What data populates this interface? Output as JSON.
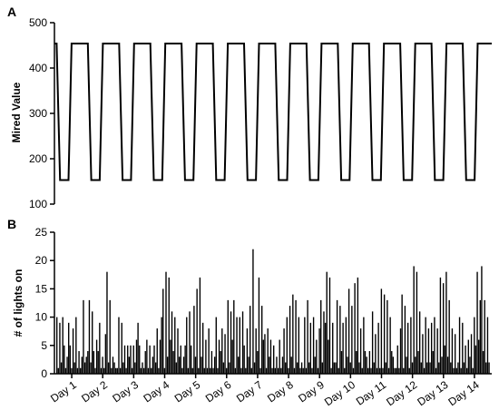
{
  "chart_data": [
    {
      "panel": "A",
      "type": "line",
      "title": "",
      "xlabel": "",
      "ylabel": "Mired Value",
      "ylim": [
        100,
        500
      ],
      "yticks": [
        100,
        200,
        300,
        400,
        500
      ],
      "xlim": [
        0,
        14
      ],
      "grid": false,
      "series": [
        {
          "values_description_free": true,
          "low": 153,
          "high": 454,
          "cycles_per_day": 1,
          "x": [
            0,
            0.07,
            0.18,
            0.45,
            0.55,
            0.81,
            1.0
          ],
          "y": [
            454,
            454,
            153,
            153,
            454,
            454,
            454
          ]
        }
      ]
    },
    {
      "panel": "B",
      "type": "bar",
      "title": "",
      "xlabel": "",
      "ylabel": "# of lights on",
      "ylim": [
        0,
        25
      ],
      "yticks": [
        0,
        5,
        10,
        15,
        20,
        25
      ],
      "grid": false,
      "categories": [
        "Day 1",
        "Day 2",
        "Day 3",
        "Day 4",
        "Day 5",
        "Day 6",
        "Day 7",
        "Day 8",
        "Day 9",
        "Day 10",
        "Day 11",
        "Day 12",
        "Day 13",
        "Day 14"
      ],
      "series": [
        {
          "values": [
            [
              10,
              1,
              9,
              2,
              10,
              5,
              1,
              3,
              9,
              5,
              1,
              8,
              2,
              10,
              1,
              4,
              1,
              3,
              13,
              2,
              3
            ],
            [
              4,
              13,
              2,
              11,
              4,
              1,
              6,
              4,
              9,
              1,
              3,
              1,
              7,
              18,
              2,
              13,
              1,
              3,
              2,
              1,
              1
            ],
            [
              10,
              1,
              9,
              2,
              5,
              1,
              5,
              3,
              5,
              1,
              5,
              2,
              6,
              9,
              5,
              1,
              2,
              1,
              4,
              6,
              1
            ],
            [
              5,
              1,
              3,
              5,
              2,
              8,
              1,
              6,
              10,
              15,
              1,
              18,
              3,
              17,
              6,
              11,
              4,
              10,
              2,
              8,
              3
            ],
            [
              5,
              1,
              3,
              5,
              10,
              1,
              11,
              5,
              1,
              12,
              3,
              15,
              1,
              17,
              3,
              9,
              1,
              6,
              1,
              8,
              1
            ],
            [
              4,
              1,
              3,
              10,
              1,
              6,
              4,
              8,
              2,
              7,
              1,
              13,
              2,
              11,
              6,
              13,
              1,
              10,
              3,
              10,
              1
            ],
            [
              11,
              5,
              1,
              8,
              3,
              12,
              1,
              22,
              2,
              8,
              4,
              17,
              1,
              12,
              6,
              7,
              1,
              8,
              3,
              6,
              1
            ],
            [
              5,
              1,
              3,
              1,
              6,
              1,
              3,
              8,
              2,
              10,
              1,
              12,
              3,
              14,
              1,
              13,
              2,
              10,
              1,
              2,
              1
            ],
            [
              10,
              1,
              13,
              2,
              9,
              1,
              10,
              3,
              6,
              1,
              8,
              13,
              2,
              11,
              9,
              18,
              6,
              17,
              1,
              9,
              2
            ],
            [
              2,
              13,
              1,
              12,
              4,
              9,
              1,
              10,
              3,
              15,
              2,
              12,
              1,
              16,
              4,
              17,
              2,
              8,
              1,
              10,
              4
            ],
            [
              3,
              1,
              4,
              1,
              11,
              2,
              7,
              1,
              9,
              1,
              15,
              1,
              14,
              2,
              13,
              1,
              10,
              4,
              3,
              1,
              1
            ],
            [
              5,
              1,
              8,
              14,
              1,
              12,
              3,
              9,
              1,
              10,
              2,
              19,
              3,
              18,
              4,
              11,
              2,
              7,
              1,
              10,
              2
            ],
            [
              8,
              2,
              9,
              4,
              10,
              1,
              8,
              2,
              17,
              3,
              16,
              5,
              18,
              3,
              13,
              2,
              8,
              1,
              7,
              1,
              2
            ],
            [
              10,
              1,
              9,
              2,
              5,
              1,
              6,
              3,
              7,
              1,
              10,
              5,
              18,
              6,
              13,
              19,
              4,
              13,
              2,
              10,
              2
            ]
          ]
        }
      ]
    }
  ],
  "panels": {
    "a": {
      "label": "A",
      "ylabel": "Mired Value"
    },
    "b": {
      "label": "B",
      "ylabel": "# of lights on"
    }
  }
}
